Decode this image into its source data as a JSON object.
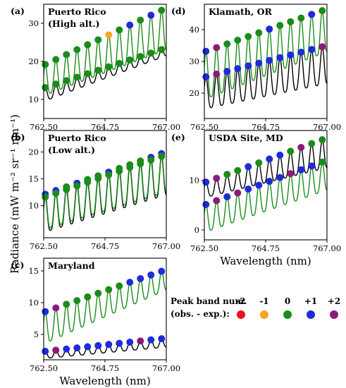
{
  "figure": {
    "ylabel": "Radiance (mW m⁻² sr⁻¹ nm⁻¹)",
    "legend": {
      "title_line1": "Peak band num.",
      "title_line2": "(obs. - exp.):",
      "items": [
        {
          "label": "-2",
          "color": "#e8141c"
        },
        {
          "label": "-1",
          "color": "#f5a623"
        },
        {
          "label": "0",
          "color": "#1a8c1a"
        },
        {
          "label": "+1",
          "color": "#1f2bd8"
        },
        {
          "label": "+2",
          "color": "#8b1a7d"
        }
      ]
    }
  },
  "chart_data": [
    {
      "id": "a",
      "letter": "(a)",
      "title_lines": [
        "Puerto Rico",
        "(High alt.)"
      ],
      "type": "line",
      "xlim": [
        762.5,
        767.0
      ],
      "ylim": [
        5,
        35
      ],
      "xticks": [
        "762.50",
        "764.75",
        "767.00"
      ],
      "yticks": [
        10,
        20,
        30
      ],
      "xlabel": "",
      "obs_curve": {
        "color": "#000000",
        "baseline": [
          9.5,
          21.5
        ],
        "peak": [
          13,
          23.5
        ]
      },
      "exp_curve": {
        "color": "#1a8c1a",
        "baseline": [
          11,
          23
        ],
        "peak": [
          19,
          34
        ]
      },
      "markers": [
        {
          "series": "upper",
          "codes": [
            0,
            0,
            0,
            0,
            0,
            0,
            -1,
            0,
            1,
            0,
            1,
            0
          ]
        },
        {
          "series": "lower",
          "codes": [
            0,
            0,
            0,
            0,
            0,
            0,
            0,
            0,
            0,
            0,
            0,
            0
          ]
        }
      ]
    },
    {
      "id": "b",
      "letter": "(b)",
      "title_lines": [
        "Puerto Rico",
        "(Low alt.)"
      ],
      "type": "line",
      "xlim": [
        762.5,
        767.0
      ],
      "ylim": [
        4,
        24
      ],
      "xticks": [
        "762.50",
        "764.75",
        "767.00"
      ],
      "yticks": [
        10,
        15,
        20
      ],
      "xlabel": "",
      "obs_curve": {
        "color": "#000000",
        "baseline": [
          5,
          12
        ],
        "peak": [
          11.5,
          19.5
        ]
      },
      "exp_curve": {
        "color": "#1a8c1a",
        "baseline": [
          5.5,
          12.5
        ],
        "peak": [
          12,
          20
        ]
      },
      "markers": [
        {
          "series": "upper",
          "codes": [
            1,
            1,
            0,
            1,
            0,
            0,
            1,
            0,
            0,
            0,
            1,
            1
          ]
        },
        {
          "series": "lower",
          "codes": [
            0,
            0,
            0,
            0,
            0,
            0,
            0,
            0,
            0,
            0,
            0,
            0
          ]
        }
      ]
    },
    {
      "id": "c",
      "letter": "(c)",
      "title_lines": [
        "Maryland"
      ],
      "type": "line",
      "xlim": [
        762.5,
        767.0
      ],
      "ylim": [
        1,
        17
      ],
      "xticks": [
        "762.50",
        "764.75",
        "767.00"
      ],
      "yticks": [
        5,
        10,
        15
      ],
      "xlabel": "Wavelength (nm)",
      "obs_curve": {
        "color": "#000000",
        "baseline": [
          1.2,
          3.0
        ],
        "peak": [
          2.3,
          4.4
        ]
      },
      "exp_curve": {
        "color": "#1a8c1a",
        "baseline": [
          3.5,
          12
        ],
        "peak": [
          8.5,
          15.2
        ]
      },
      "markers": [
        {
          "series": "upper",
          "codes": [
            1,
            2,
            0,
            0,
            0,
            0,
            0,
            0,
            1,
            1,
            1,
            1
          ]
        },
        {
          "series": "lower",
          "codes": [
            1,
            2,
            1,
            1,
            1,
            1,
            1,
            1,
            1,
            2,
            1,
            1
          ]
        }
      ]
    },
    {
      "id": "d",
      "letter": "(d)",
      "title_lines": [
        "Klamath, OR"
      ],
      "type": "line",
      "xlim": [
        762.5,
        767.0
      ],
      "ylim": [
        12,
        48
      ],
      "xticks": [
        "762.50",
        "764.75",
        "767.00"
      ],
      "yticks": [
        20,
        30,
        40
      ],
      "xlabel": "",
      "obs_curve": {
        "color": "#000000",
        "baseline": [
          15,
          23
        ],
        "peak": [
          25,
          35
        ]
      },
      "exp_curve": {
        "color": "#1a8c1a",
        "baseline": [
          18,
          33
        ],
        "peak": [
          33,
          46.5
        ]
      },
      "markers": [
        {
          "series": "upper",
          "codes": [
            1,
            2,
            0,
            0,
            0,
            0,
            1,
            0,
            0,
            0,
            1,
            0
          ]
        },
        {
          "series": "lower",
          "codes": [
            1,
            2,
            1,
            1,
            1,
            1,
            1,
            1,
            1,
            1,
            1,
            2
          ]
        }
      ]
    },
    {
      "id": "e",
      "letter": "(e)",
      "title_lines": [
        "USDA Site, MD"
      ],
      "type": "line",
      "xlim": [
        762.5,
        767.0
      ],
      "ylim": [
        -2,
        20
      ],
      "xticks": [
        "762.50",
        "764.75",
        "767.00"
      ],
      "yticks": [
        0,
        10
      ],
      "xlabel": "Wavelength (nm)",
      "obs_curve": {
        "color": "#000000",
        "baseline": [
          6.5,
          12.5
        ],
        "peak": [
          9.5,
          18.5
        ]
      },
      "exp_curve": {
        "color": "#1a8c1a",
        "baseline": [
          -0.5,
          8
        ],
        "peak": [
          5,
          14
        ]
      },
      "markers": [
        {
          "series": "upper",
          "codes": [
            1,
            2,
            1,
            2,
            1,
            1,
            1,
            1,
            2,
            1,
            1,
            0
          ]
        },
        {
          "series": "lower",
          "codes": [
            1,
            2,
            0,
            0,
            1,
            0,
            1,
            1,
            0,
            2,
            0,
            0
          ]
        }
      ]
    }
  ]
}
